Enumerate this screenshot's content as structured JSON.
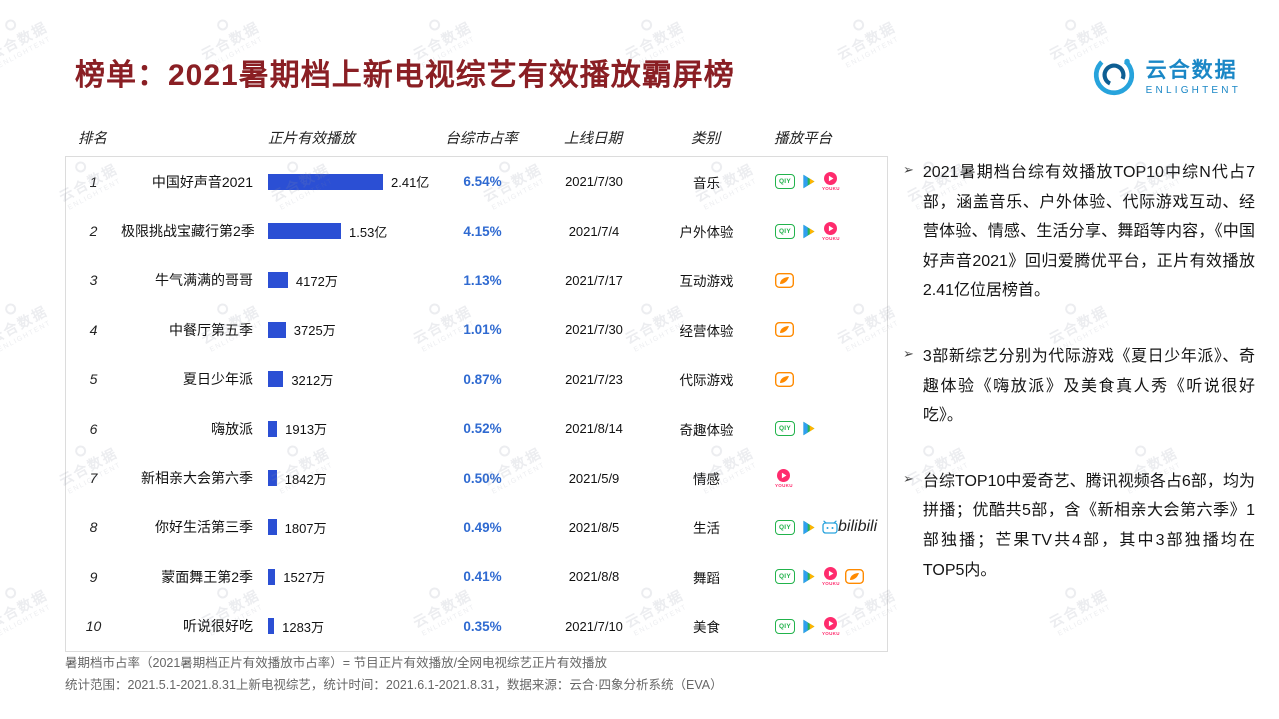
{
  "page": {
    "title": "榜单：2021暑期档上新电视综艺有效播放霸屏榜",
    "watermark_cn": "云合数据",
    "watermark_en": "ENLIGHTENT",
    "logo": {
      "name": "云合数据",
      "sub": "ENLIGHTENT"
    }
  },
  "colors": {
    "title": "#8a1f24",
    "bar": "#2b4fd4",
    "share": "#2f6ad1",
    "iqiyi": "#21b34b",
    "tencent": "#24b35c",
    "youku": "#ff2b6d",
    "mango": "#ff8a00",
    "bilibili": "#29a3dd"
  },
  "chart_data": {
    "type": "bar",
    "title": "2021暑期档上新电视综艺有效播放霸屏榜",
    "unit": "正片有效播放（万）",
    "xlim": [
      0,
      24100
    ],
    "columns": [
      "排名",
      "正片有效播放",
      "台综市占率",
      "上线日期",
      "类别",
      "播放平台"
    ],
    "rows": [
      {
        "rank": "1",
        "name": "中国好声音2021",
        "plays_wan": 24100,
        "plays_label": "2.41亿",
        "share": "6.54%",
        "date": "2021/7/30",
        "category": "音乐",
        "platforms": [
          "iqiyi",
          "tencent",
          "youku"
        ]
      },
      {
        "rank": "2",
        "name": "极限挑战宝藏行第2季",
        "plays_wan": 15300,
        "plays_label": "1.53亿",
        "share": "4.15%",
        "date": "2021/7/4",
        "category": "户外体验",
        "platforms": [
          "iqiyi",
          "tencent",
          "youku"
        ]
      },
      {
        "rank": "3",
        "name": "牛气满满的哥哥",
        "plays_wan": 4172,
        "plays_label": "4172万",
        "share": "1.13%",
        "date": "2021/7/17",
        "category": "互动游戏",
        "platforms": [
          "mango"
        ]
      },
      {
        "rank": "4",
        "name": "中餐厅第五季",
        "plays_wan": 3725,
        "plays_label": "3725万",
        "share": "1.01%",
        "date": "2021/7/30",
        "category": "经营体验",
        "platforms": [
          "mango"
        ]
      },
      {
        "rank": "5",
        "name": "夏日少年派",
        "plays_wan": 3212,
        "plays_label": "3212万",
        "share": "0.87%",
        "date": "2021/7/23",
        "category": "代际游戏",
        "platforms": [
          "mango"
        ]
      },
      {
        "rank": "6",
        "name": "嗨放派",
        "plays_wan": 1913,
        "plays_label": "1913万",
        "share": "0.52%",
        "date": "2021/8/14",
        "category": "奇趣体验",
        "platforms": [
          "iqiyi",
          "tencent"
        ]
      },
      {
        "rank": "7",
        "name": "新相亲大会第六季",
        "plays_wan": 1842,
        "plays_label": "1842万",
        "share": "0.50%",
        "date": "2021/5/9",
        "category": "情感",
        "platforms": [
          "youku"
        ]
      },
      {
        "rank": "8",
        "name": "你好生活第三季",
        "plays_wan": 1807,
        "plays_label": "1807万",
        "share": "0.49%",
        "date": "2021/8/5",
        "category": "生活",
        "platforms": [
          "iqiyi",
          "tencent",
          "bilibili"
        ]
      },
      {
        "rank": "9",
        "name": "蒙面舞王第2季",
        "plays_wan": 1527,
        "plays_label": "1527万",
        "share": "0.41%",
        "date": "2021/8/8",
        "category": "舞蹈",
        "platforms": [
          "iqiyi",
          "tencent",
          "youku",
          "mango"
        ]
      },
      {
        "rank": "10",
        "name": "听说很好吃",
        "plays_wan": 1283,
        "plays_label": "1283万",
        "share": "0.35%",
        "date": "2021/7/10",
        "category": "美食",
        "platforms": [
          "iqiyi",
          "tencent",
          "youku"
        ]
      }
    ]
  },
  "notes_marker": "➢",
  "notes": [
    "2021暑期档台综有效播放TOP10中综N代占7部，涵盖音乐、户外体验、代际游戏互动、经营体验、情感、生活分享、舞蹈等内容，《中国好声音2021》回归爱腾优平台，正片有效播放2.41亿位居榜首。",
    "3部新综艺分别为代际游戏《夏日少年派》、奇趣体验《嗨放派》及美食真人秀《听说很好吃》。",
    "台综TOP10中爱奇艺、腾讯视频各占6部，均为拼播；优酷共5部，含《新相亲大会第六季》1部独播；芒果TV共4部，其中3部独播均在TOP5内。"
  ],
  "footer": {
    "line1": "暑期档市占率（2021暑期档正片有效播放市占率）= 节目正片有效播放/全网电视综艺正片有效播放",
    "line2": "统计范围：2021.5.1-2021.8.31上新电视综艺，统计时间：2021.6.1-2021.8.31，数据来源：云合·四象分析系统（EVA）"
  }
}
